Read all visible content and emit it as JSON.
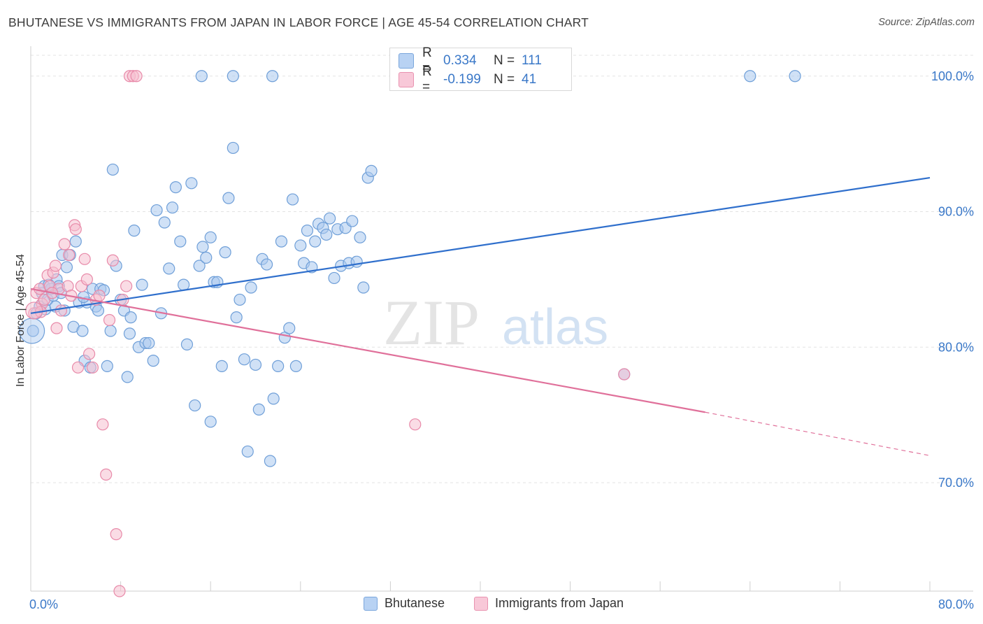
{
  "title": "BHUTANESE VS IMMIGRANTS FROM JAPAN IN LABOR FORCE | AGE 45-54 CORRELATION CHART",
  "source": "Source: ZipAtlas.com",
  "watermark": {
    "zip": "ZIP",
    "atlas": "atlas"
  },
  "stats": {
    "rows": [
      {
        "r_label": "R =",
        "r_value": "0.334",
        "n_label": "N =",
        "n_value": "111"
      },
      {
        "r_label": "R =",
        "r_value": "-0.199",
        "n_label": "N =",
        "n_value": "41"
      }
    ]
  },
  "legend": {
    "items": [
      {
        "label": "Bhutanese"
      },
      {
        "label": "Immigrants from Japan"
      }
    ]
  },
  "colors": {
    "blue_fill": "#a9c8ef",
    "blue_stroke": "#6f9fd8",
    "blue_line": "#2f6fcc",
    "pink_fill": "#f6bfd0",
    "pink_stroke": "#e88aa9",
    "pink_line": "#e0709a",
    "tick_text": "#3a78c8",
    "grid": "#e3e3e3"
  },
  "chart_data": {
    "type": "scatter",
    "title": "BHUTANESE VS IMMIGRANTS FROM JAPAN IN LABOR FORCE | AGE 45-54 CORRELATION CHART",
    "xlabel": "",
    "ylabel": "In Labor Force | Age 45-54",
    "xlim": [
      0,
      80
    ],
    "ylim": [
      62,
      102
    ],
    "x_tick_labels": [
      "0.0%",
      "80.0%"
    ],
    "y_ticks": [
      70,
      80,
      90,
      100
    ],
    "y_tick_labels": [
      "70.0%",
      "80.0%",
      "90.0%",
      "100.0%"
    ],
    "grid": true,
    "legend_position": "bottom",
    "series": [
      {
        "name": "Bhutanese",
        "trend": {
          "x0": 0,
          "y0": 82.5,
          "x1": 80,
          "y1": 92.5
        },
        "points": [
          [
            0.2,
            81.2
          ],
          [
            0.5,
            82.5
          ],
          [
            0.8,
            83.0
          ],
          [
            1.0,
            84.0
          ],
          [
            1.2,
            84.5
          ],
          [
            1.3,
            82.8
          ],
          [
            1.5,
            83.5
          ],
          [
            1.8,
            84.3
          ],
          [
            2.0,
            83.8
          ],
          [
            2.2,
            83.0
          ],
          [
            2.3,
            85.0
          ],
          [
            2.5,
            84.5
          ],
          [
            2.8,
            86.8
          ],
          [
            3.0,
            82.7
          ],
          [
            3.2,
            85.9
          ],
          [
            3.5,
            86.8
          ],
          [
            3.8,
            81.5
          ],
          [
            4.0,
            87.8
          ],
          [
            4.3,
            83.3
          ],
          [
            4.6,
            81.2
          ],
          [
            4.8,
            79.0
          ],
          [
            5.0,
            83.3
          ],
          [
            5.3,
            78.5
          ],
          [
            5.5,
            84.3
          ],
          [
            5.8,
            83.0
          ],
          [
            6.0,
            82.7
          ],
          [
            6.2,
            84.3
          ],
          [
            6.5,
            84.2
          ],
          [
            6.8,
            78.6
          ],
          [
            7.1,
            81.2
          ],
          [
            7.3,
            93.1
          ],
          [
            7.6,
            86.0
          ],
          [
            8.0,
            83.5
          ],
          [
            8.3,
            82.7
          ],
          [
            8.6,
            77.8
          ],
          [
            8.9,
            82.2
          ],
          [
            9.2,
            88.6
          ],
          [
            9.6,
            80.0
          ],
          [
            9.9,
            84.6
          ],
          [
            10.2,
            80.3
          ],
          [
            10.5,
            80.3
          ],
          [
            10.9,
            79.0
          ],
          [
            11.2,
            90.1
          ],
          [
            11.6,
            82.5
          ],
          [
            11.9,
            89.2
          ],
          [
            12.3,
            85.8
          ],
          [
            12.6,
            90.3
          ],
          [
            12.9,
            91.8
          ],
          [
            13.3,
            87.8
          ],
          [
            13.6,
            84.6
          ],
          [
            13.9,
            80.2
          ],
          [
            14.3,
            92.1
          ],
          [
            14.6,
            75.7
          ],
          [
            15.0,
            86.0
          ],
          [
            15.3,
            87.4
          ],
          [
            15.6,
            86.6
          ],
          [
            16.0,
            88.1
          ],
          [
            16.3,
            84.8
          ],
          [
            16.6,
            84.8
          ],
          [
            17.0,
            78.6
          ],
          [
            17.3,
            87.0
          ],
          [
            17.6,
            91.0
          ],
          [
            18.0,
            94.7
          ],
          [
            18.3,
            82.2
          ],
          [
            18.6,
            83.5
          ],
          [
            19.0,
            79.1
          ],
          [
            19.3,
            72.3
          ],
          [
            19.6,
            84.4
          ],
          [
            20.0,
            78.7
          ],
          [
            20.3,
            75.4
          ],
          [
            20.6,
            86.5
          ],
          [
            21.0,
            86.1
          ],
          [
            21.3,
            71.6
          ],
          [
            21.6,
            76.2
          ],
          [
            22.0,
            78.6
          ],
          [
            22.3,
            87.8
          ],
          [
            22.6,
            80.7
          ],
          [
            23.0,
            81.4
          ],
          [
            23.3,
            90.9
          ],
          [
            23.6,
            78.6
          ],
          [
            24.0,
            87.5
          ],
          [
            24.3,
            86.2
          ],
          [
            24.6,
            88.6
          ],
          [
            25.0,
            85.9
          ],
          [
            25.3,
            87.8
          ],
          [
            25.6,
            89.1
          ],
          [
            26.0,
            88.8
          ],
          [
            26.3,
            88.3
          ],
          [
            26.6,
            89.5
          ],
          [
            27.0,
            85.1
          ],
          [
            27.3,
            88.7
          ],
          [
            27.6,
            86.0
          ],
          [
            28.0,
            88.8
          ],
          [
            28.3,
            86.2
          ],
          [
            28.6,
            89.3
          ],
          [
            29.0,
            86.3
          ],
          [
            29.3,
            88.1
          ],
          [
            29.6,
            84.4
          ],
          [
            30.0,
            92.5
          ],
          [
            30.3,
            93.0
          ],
          [
            15.2,
            100.0
          ],
          [
            21.5,
            100.0
          ],
          [
            64.0,
            100.0
          ],
          [
            68.0,
            100.0
          ],
          [
            52.8,
            78.0
          ],
          [
            16.0,
            74.5
          ],
          [
            18.0,
            100.0
          ],
          [
            1.6,
            84.6
          ],
          [
            2.7,
            84.0
          ],
          [
            4.7,
            83.7
          ],
          [
            8.8,
            81.0
          ]
        ]
      },
      {
        "name": "Immigrants from Japan",
        "trend": {
          "x0": 0,
          "y0": 84.3,
          "x1": 60,
          "y1": 75.2
        },
        "trend_dashed": {
          "x0": 60,
          "y0": 75.2,
          "x1": 80,
          "y1": 72.0
        },
        "points": [
          [
            0.3,
            82.5
          ],
          [
            0.5,
            84.0
          ],
          [
            0.8,
            84.3
          ],
          [
            1.0,
            83.2
          ],
          [
            1.2,
            83.5
          ],
          [
            1.5,
            85.3
          ],
          [
            1.7,
            84.5
          ],
          [
            2.0,
            85.5
          ],
          [
            2.2,
            86.0
          ],
          [
            2.5,
            84.3
          ],
          [
            2.7,
            82.7
          ],
          [
            3.0,
            87.6
          ],
          [
            3.3,
            84.5
          ],
          [
            3.6,
            83.8
          ],
          [
            3.9,
            89.0
          ],
          [
            4.2,
            78.5
          ],
          [
            4.5,
            84.5
          ],
          [
            4.8,
            86.5
          ],
          [
            5.2,
            79.5
          ],
          [
            5.5,
            78.5
          ],
          [
            5.8,
            83.5
          ],
          [
            6.1,
            83.8
          ],
          [
            6.4,
            74.3
          ],
          [
            6.7,
            70.6
          ],
          [
            7.0,
            82.0
          ],
          [
            7.3,
            86.4
          ],
          [
            7.6,
            66.2
          ],
          [
            7.9,
            62.0
          ],
          [
            8.2,
            83.5
          ],
          [
            8.5,
            84.5
          ],
          [
            8.8,
            100.0
          ],
          [
            9.1,
            100.0
          ],
          [
            9.4,
            100.0
          ],
          [
            2.3,
            81.4
          ],
          [
            3.4,
            86.8
          ],
          [
            4.0,
            88.7
          ],
          [
            5.0,
            85.0
          ],
          [
            0.9,
            82.6
          ],
          [
            34.2,
            74.3
          ],
          [
            52.8,
            78.0
          ],
          [
            1.9,
            84.0
          ]
        ]
      }
    ]
  }
}
